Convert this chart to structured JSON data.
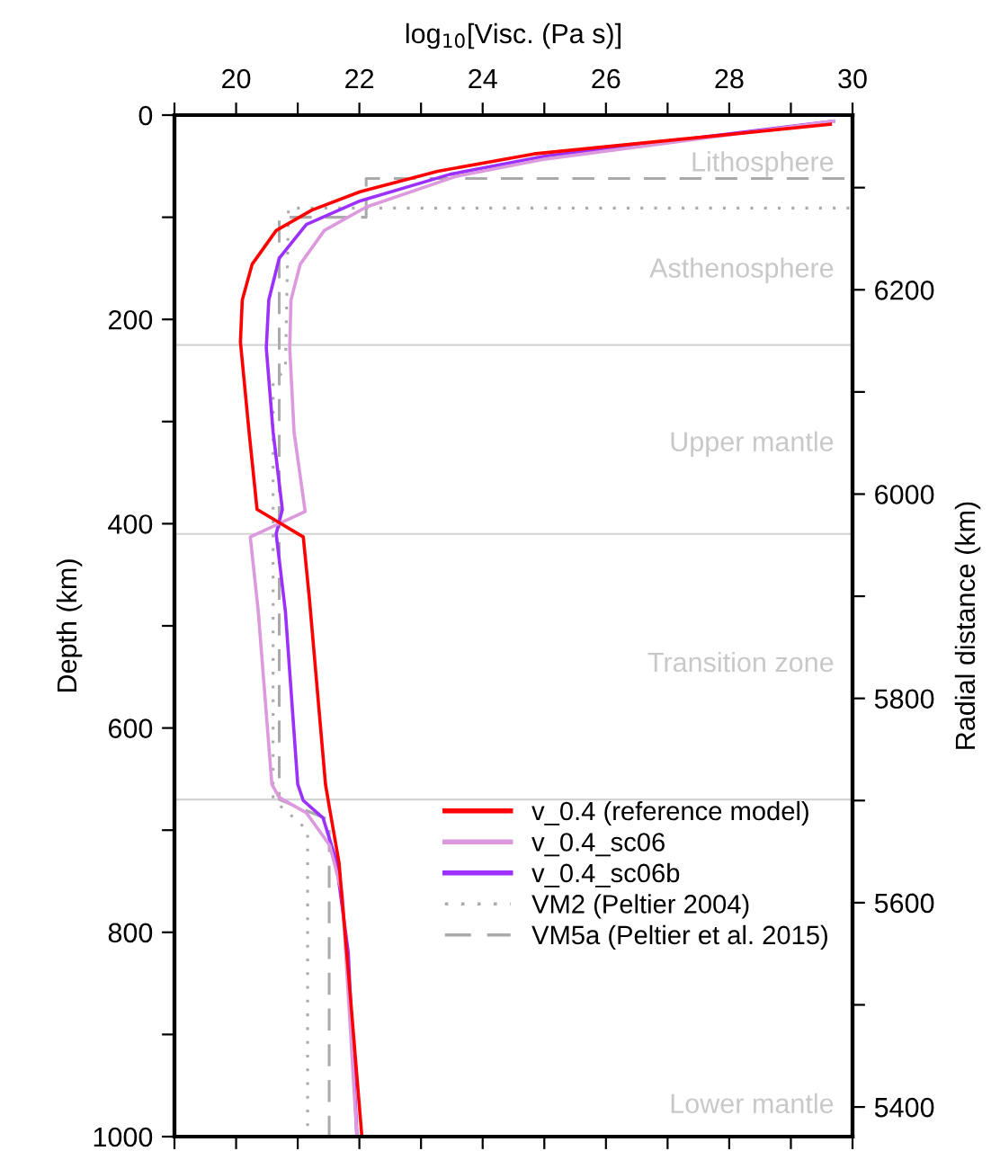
{
  "chart_data": {
    "type": "line",
    "xlabel": "log$_{10}$[Visc. (Pa s)]",
    "ylabel": "Depth (km)",
    "y2label": "Radial distance (km)",
    "xlim": [
      19,
      30
    ],
    "xticks": [
      {
        "value": 19,
        "label": null
      },
      20,
      {
        "value": 21,
        "label": null
      },
      22,
      {
        "value": 23,
        "label": null
      },
      24,
      {
        "value": 25,
        "label": null
      },
      26,
      {
        "value": 27,
        "label": null
      },
      28,
      {
        "value": 29,
        "label": null
      },
      30
    ],
    "ylim": [
      1000,
      0
    ],
    "yticks": [
      0,
      {
        "value": 100,
        "label": null
      },
      200,
      {
        "value": 300,
        "label": null
      },
      400,
      {
        "value": 500,
        "label": null
      },
      600,
      {
        "value": 700,
        "label": null
      },
      800,
      {
        "value": 900,
        "label": null
      },
      1000
    ],
    "y2lim": [
      5371,
      6371
    ],
    "y2ticks": [
      5400,
      {
        "value": 5500,
        "label": null
      },
      5600,
      {
        "value": 5700,
        "label": null
      },
      5800,
      {
        "value": 5900,
        "label": null
      },
      6000,
      {
        "value": 6100,
        "label": null
      },
      6200,
      {
        "value": 6300,
        "label": null
      }
    ],
    "grid": false,
    "legend": "bottom right",
    "series": [
      {
        "name": "v_0.4 (reference model)",
        "color": "#ff0000",
        "line_style": "solid",
        "x": [
          29.64,
          24.83,
          23.27,
          22.01,
          21.23,
          20.65,
          20.26,
          20.1,
          20.07,
          20.21,
          20.34,
          21.09,
          21.19,
          21.45,
          21.52,
          21.67,
          21.82,
          22.04
        ],
        "values": [
          9,
          38,
          55,
          75,
          93,
          113,
          146,
          181,
          222,
          310,
          386,
          413,
          474,
          655,
          680,
          732,
          838,
          1000
        ]
      },
      {
        "name": "v_0.4_sc06",
        "color": "#dd99dd",
        "line_style": "solid",
        "x": [
          29.69,
          25.02,
          23.57,
          22.11,
          21.43,
          21.04,
          20.89,
          20.87,
          20.94,
          21.12,
          20.23,
          20.36,
          20.58,
          20.7,
          21.14,
          21.52,
          21.72,
          21.96
        ],
        "values": [
          6,
          43,
          60,
          90,
          113,
          146,
          181,
          228,
          310,
          388,
          413,
          486,
          655,
          668,
          683,
          715,
          762,
          1000
        ]
      },
      {
        "name": "v_0.4_sc06b",
        "color": "#9b30ff",
        "line_style": "solid",
        "x": [
          29.69,
          25.02,
          23.47,
          22.01,
          21.14,
          20.7,
          20.53,
          20.49,
          20.6,
          20.75,
          20.65,
          20.8,
          21.0,
          21.09,
          21.41,
          21.62,
          21.82,
          21.96
        ],
        "values": [
          6,
          40,
          58,
          84,
          107,
          140,
          181,
          228,
          310,
          386,
          410,
          486,
          655,
          671,
          688,
          729,
          820,
          1000
        ]
      },
      {
        "name": "VM2 (Peltier 2004)",
        "color": "#aaaaaa",
        "line_style": "dotted",
        "x": [
          30,
          30,
          20.85,
          20.8,
          20.6,
          20.6,
          21.16,
          21.16
        ],
        "values": [
          0,
          91,
          91,
          250,
          260,
          670,
          700,
          1000
        ]
      },
      {
        "name": "VM5a (Peltier et al. 2015)",
        "color": "#aaaaaa",
        "line_style": "dashed",
        "x": [
          30,
          30,
          22.11,
          22.11,
          20.7,
          20.7,
          21.51,
          21.51
        ],
        "values": [
          0,
          62,
          62,
          100,
          100,
          670,
          690,
          1000
        ]
      }
    ],
    "ref_lines": [
      {
        "axis": "y",
        "value": 225,
        "color": "#d3d3d3"
      },
      {
        "axis": "y",
        "value": 410,
        "color": "#d3d3d3"
      },
      {
        "axis": "y",
        "value": 670,
        "color": "#d3d3d3"
      }
    ],
    "annotations": [
      "Lithosphere",
      "Asthenosphere",
      "Upper mantle",
      "Transition zone",
      "Lower mantle"
    ]
  }
}
